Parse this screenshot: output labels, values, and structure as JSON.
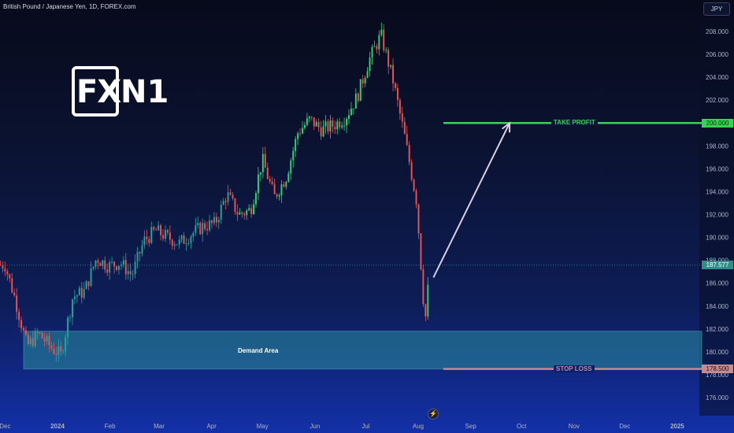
{
  "header": {
    "symbol_title": "British Pound / Japanese Yen, 1D, FOREX.com",
    "currency_button": "JPY"
  },
  "logo": {
    "text_a": "FX",
    "text_b": "N1"
  },
  "annotations": {
    "take_profit_label": "TAKE PROFIT",
    "stop_loss_label": "STOP LOSS",
    "demand_label": "Demand Area",
    "take_profit_price": "200.000",
    "stop_loss_price": "178.500",
    "current_price": "187.577"
  },
  "colors": {
    "up": "#26a69a",
    "down": "#ef5350",
    "up_bright": "#2ed573",
    "take_profit": "#39d353",
    "stop_loss": "#c48b92",
    "demand_fill": "#2a8e9e",
    "arrow": "#d9d0e0"
  },
  "chart_data": {
    "type": "candlestick",
    "title": "British Pound / Japanese Yen, 1D, FOREX.com",
    "y_axis_ticks": [
      "176.000",
      "178.000",
      "180.000",
      "182.000",
      "184.000",
      "186.000",
      "188.000",
      "190.000",
      "192.000",
      "194.000",
      "196.000",
      "198.000",
      "200.000",
      "202.000",
      "204.000",
      "206.000",
      "208.000"
    ],
    "x_axis_ticks": [
      "Dec",
      "2024",
      "Feb",
      "Mar",
      "Apr",
      "May",
      "Jun",
      "Jul",
      "Aug",
      "Sep",
      "Oct",
      "Nov",
      "Dec",
      "2025"
    ],
    "ylim": [
      175.2,
      209.6
    ],
    "price_path_closes": [
      [
        "2023-12-01",
        187.6
      ],
      [
        "2023-12-07",
        184.6
      ],
      [
        "2023-12-14",
        180.5
      ],
      [
        "2023-12-21",
        181.6
      ],
      [
        "2023-12-28",
        180.4
      ],
      [
        "2024-01-03",
        179.7
      ],
      [
        "2024-01-10",
        184.8
      ],
      [
        "2024-01-17",
        185.3
      ],
      [
        "2024-01-24",
        188.2
      ],
      [
        "2024-01-31",
        187.5
      ],
      [
        "2024-02-07",
        187.8
      ],
      [
        "2024-02-14",
        186.7
      ],
      [
        "2024-02-21",
        189.7
      ],
      [
        "2024-02-28",
        190.6
      ],
      [
        "2024-03-06",
        190.0
      ],
      [
        "2024-03-13",
        189.5
      ],
      [
        "2024-03-20",
        190.3
      ],
      [
        "2024-03-27",
        191.0
      ],
      [
        "2024-04-03",
        191.2
      ],
      [
        "2024-04-10",
        193.8
      ],
      [
        "2024-04-17",
        192.0
      ],
      [
        "2024-04-24",
        192.4
      ],
      [
        "2024-05-01",
        196.8
      ],
      [
        "2024-05-08",
        193.5
      ],
      [
        "2024-05-15",
        195.3
      ],
      [
        "2024-05-22",
        199.2
      ],
      [
        "2024-05-29",
        200.3
      ],
      [
        "2024-06-05",
        199.4
      ],
      [
        "2024-06-12",
        199.8
      ],
      [
        "2024-06-19",
        200.5
      ],
      [
        "2024-06-26",
        202.3
      ],
      [
        "2024-07-03",
        205.5
      ],
      [
        "2024-07-10",
        207.7
      ],
      [
        "2024-07-17",
        203.8
      ],
      [
        "2024-07-24",
        198.8
      ],
      [
        "2024-07-31",
        193.2
      ],
      [
        "2024-08-05",
        182.5
      ],
      [
        "2024-08-08",
        187.6
      ]
    ],
    "levels": [
      {
        "name": "TAKE PROFIT",
        "price": 200.0
      },
      {
        "name": "STOP LOSS",
        "price": 178.5
      }
    ],
    "zones": [
      {
        "name": "Demand Area",
        "from": 178.5,
        "to": 181.8,
        "start": "2023-12-12"
      }
    ],
    "projection": {
      "from": [
        "2024-08-10",
        186.5
      ],
      "to": [
        "2024-09-24",
        200.0
      ]
    },
    "last_price": 187.577
  }
}
